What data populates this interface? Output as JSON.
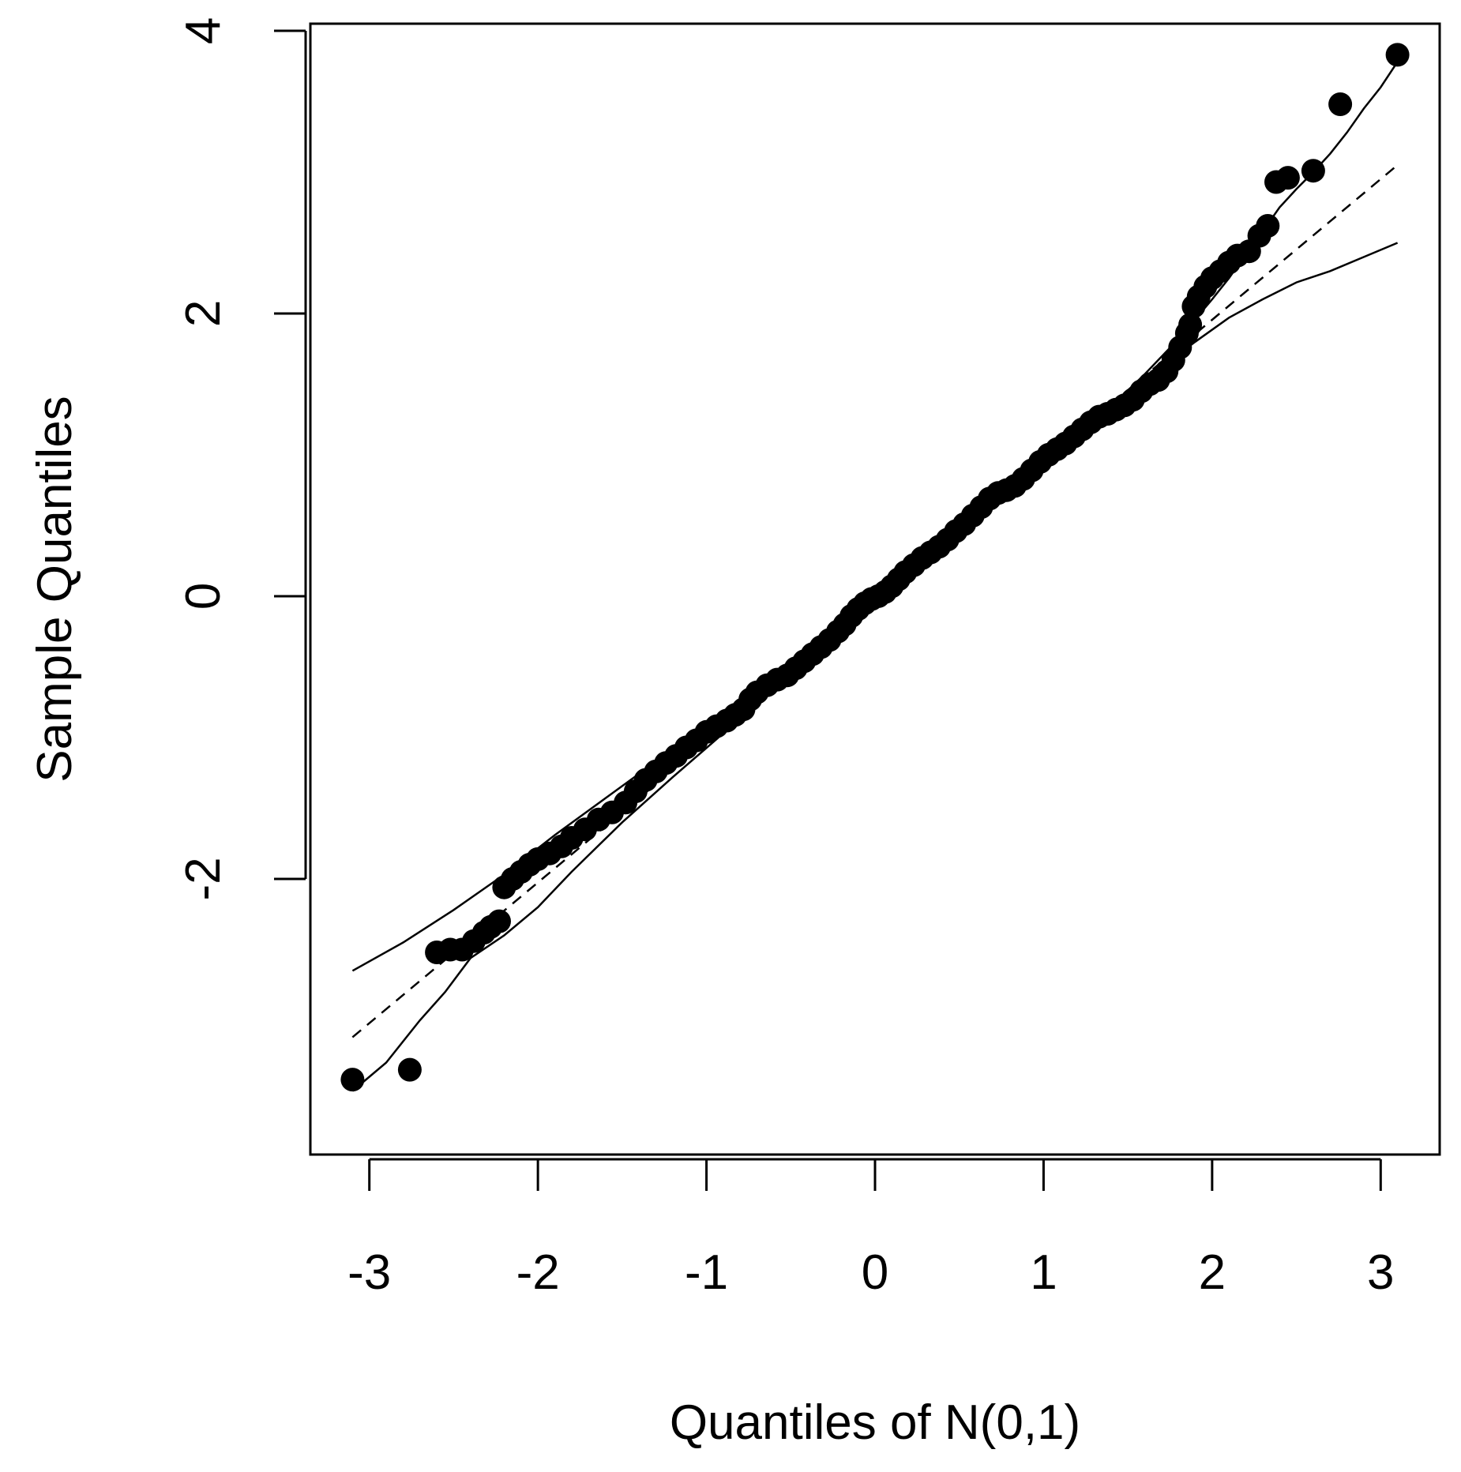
{
  "chart_data": {
    "type": "scatter",
    "title": "",
    "xlabel": "Quantiles of N(0,1)",
    "ylabel": "Sample Quantiles",
    "xlim": [
      -3.35,
      3.35
    ],
    "ylim": [
      -3.95,
      4.05
    ],
    "x_ticks": [
      -3,
      -2,
      -1,
      0,
      1,
      2,
      3
    ],
    "x_tick_labels": [
      "-3",
      "-2",
      "-1",
      "0",
      "1",
      "2",
      "3"
    ],
    "y_ticks": [
      -2,
      0,
      2,
      4
    ],
    "y_tick_labels": [
      "-2",
      "0",
      "2",
      "4"
    ],
    "grid": false,
    "legend": "none",
    "points": [
      [
        -3.1,
        -3.42
      ],
      [
        -2.76,
        -3.35
      ],
      [
        -2.6,
        -2.52
      ],
      [
        -2.52,
        -2.5
      ],
      [
        -2.45,
        -2.5
      ],
      [
        -2.38,
        -2.44
      ],
      [
        -2.32,
        -2.38
      ],
      [
        -2.28,
        -2.34
      ],
      [
        -2.23,
        -2.3
      ],
      [
        -2.2,
        -2.06
      ],
      [
        -2.15,
        -2.0
      ],
      [
        -2.1,
        -1.95
      ],
      [
        -2.05,
        -1.9
      ],
      [
        -2.0,
        -1.86
      ],
      [
        -1.93,
        -1.82
      ],
      [
        -1.86,
        -1.77
      ],
      [
        -1.8,
        -1.71
      ],
      [
        -1.72,
        -1.65
      ],
      [
        -1.64,
        -1.58
      ],
      [
        -1.56,
        -1.53
      ],
      [
        -1.48,
        -1.46
      ],
      [
        -1.42,
        -1.38
      ],
      [
        -1.36,
        -1.3
      ],
      [
        -1.3,
        -1.24
      ],
      [
        -1.24,
        -1.18
      ],
      [
        -1.18,
        -1.13
      ],
      [
        -1.12,
        -1.07
      ],
      [
        -1.06,
        -1.02
      ],
      [
        -1.0,
        -0.96
      ],
      [
        -0.94,
        -0.92
      ],
      [
        -0.88,
        -0.88
      ],
      [
        -0.83,
        -0.84
      ],
      [
        -0.78,
        -0.8
      ],
      [
        -0.74,
        -0.73
      ],
      [
        -0.7,
        -0.68
      ],
      [
        -0.64,
        -0.63
      ],
      [
        -0.58,
        -0.59
      ],
      [
        -0.52,
        -0.56
      ],
      [
        -0.47,
        -0.51
      ],
      [
        -0.42,
        -0.46
      ],
      [
        -0.37,
        -0.41
      ],
      [
        -0.32,
        -0.36
      ],
      [
        -0.27,
        -0.31
      ],
      [
        -0.22,
        -0.25
      ],
      [
        -0.18,
        -0.2
      ],
      [
        -0.14,
        -0.14
      ],
      [
        -0.1,
        -0.09
      ],
      [
        -0.06,
        -0.05
      ],
      [
        -0.02,
        -0.02
      ],
      [
        0.02,
        0.0
      ],
      [
        0.06,
        0.03
      ],
      [
        0.1,
        0.07
      ],
      [
        0.14,
        0.12
      ],
      [
        0.18,
        0.17
      ],
      [
        0.23,
        0.22
      ],
      [
        0.28,
        0.27
      ],
      [
        0.33,
        0.31
      ],
      [
        0.38,
        0.35
      ],
      [
        0.43,
        0.4
      ],
      [
        0.48,
        0.46
      ],
      [
        0.53,
        0.51
      ],
      [
        0.58,
        0.57
      ],
      [
        0.63,
        0.63
      ],
      [
        0.68,
        0.69
      ],
      [
        0.73,
        0.73
      ],
      [
        0.78,
        0.75
      ],
      [
        0.83,
        0.78
      ],
      [
        0.88,
        0.83
      ],
      [
        0.93,
        0.89
      ],
      [
        0.98,
        0.95
      ],
      [
        1.03,
        1.0
      ],
      [
        1.08,
        1.04
      ],
      [
        1.13,
        1.08
      ],
      [
        1.18,
        1.13
      ],
      [
        1.23,
        1.18
      ],
      [
        1.28,
        1.23
      ],
      [
        1.33,
        1.27
      ],
      [
        1.38,
        1.29
      ],
      [
        1.43,
        1.32
      ],
      [
        1.48,
        1.35
      ],
      [
        1.53,
        1.39
      ],
      [
        1.58,
        1.45
      ],
      [
        1.63,
        1.5
      ],
      [
        1.68,
        1.53
      ],
      [
        1.73,
        1.59
      ],
      [
        1.77,
        1.67
      ],
      [
        1.81,
        1.76
      ],
      [
        1.85,
        1.86
      ],
      [
        1.87,
        1.92
      ],
      [
        1.89,
        2.05
      ],
      [
        1.92,
        2.12
      ],
      [
        1.96,
        2.19
      ],
      [
        2.0,
        2.25
      ],
      [
        2.05,
        2.3
      ],
      [
        2.1,
        2.36
      ],
      [
        2.15,
        2.41
      ],
      [
        2.22,
        2.44
      ],
      [
        2.28,
        2.55
      ],
      [
        2.33,
        2.62
      ],
      [
        2.38,
        2.93
      ],
      [
        2.45,
        2.96
      ],
      [
        2.6,
        3.01
      ],
      [
        2.76,
        3.48
      ],
      [
        3.1,
        3.83
      ]
    ],
    "reference_line": {
      "style": "dashed",
      "x": [
        -3.1,
        3.1
      ],
      "y": [
        -3.12,
        3.05
      ]
    },
    "envelope_upper": {
      "style": "solid",
      "x": [
        -3.1,
        -2.8,
        -2.5,
        -2.2,
        -1.9,
        -1.6,
        -1.3,
        -1.0,
        -0.7,
        -0.4,
        -0.1,
        0.2,
        0.5,
        0.8,
        1.1,
        1.4,
        1.6,
        1.8,
        1.9,
        2.0,
        2.1,
        2.2,
        2.3,
        2.4,
        2.5,
        2.6,
        2.7,
        2.8,
        2.9,
        3.0,
        3.1
      ],
      "y": [
        -2.65,
        -2.45,
        -2.22,
        -1.97,
        -1.69,
        -1.43,
        -1.17,
        -0.92,
        -0.66,
        -0.39,
        -0.11,
        0.17,
        0.45,
        0.74,
        1.04,
        1.34,
        1.57,
        1.82,
        1.96,
        2.1,
        2.25,
        2.42,
        2.58,
        2.75,
        2.88,
        3.0,
        3.13,
        3.28,
        3.45,
        3.6,
        3.78
      ]
    },
    "envelope_lower": {
      "style": "solid",
      "x": [
        -3.1,
        -2.9,
        -2.7,
        -2.55,
        -2.4,
        -2.2,
        -2.0,
        -1.8,
        -1.5,
        -1.2,
        -0.9,
        -0.6,
        -0.3,
        0.0,
        0.3,
        0.6,
        0.9,
        1.2,
        1.5,
        1.7,
        1.9,
        2.1,
        2.3,
        2.5,
        2.7,
        2.9,
        3.1
      ],
      "y": [
        -3.5,
        -3.3,
        -3.0,
        -2.8,
        -2.56,
        -2.4,
        -2.2,
        -1.95,
        -1.6,
        -1.28,
        -0.97,
        -0.66,
        -0.35,
        -0.05,
        0.25,
        0.55,
        0.85,
        1.14,
        1.42,
        1.62,
        1.8,
        1.97,
        2.1,
        2.22,
        2.3,
        2.4,
        2.5
      ]
    }
  }
}
